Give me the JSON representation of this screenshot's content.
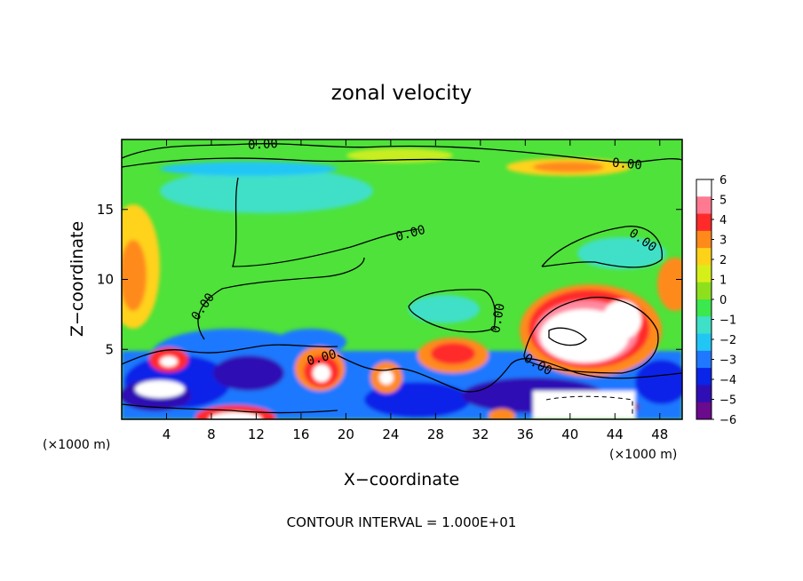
{
  "chart_data": {
    "type": "heatmap",
    "title": "zonal velocity",
    "xlabel": "X−coordinate",
    "ylabel": "Z−coordinate",
    "x_units": "(×1000 m)",
    "z_units": "(×1000 m)",
    "footer": "CONTOUR INTERVAL = 1.000E+01",
    "xlim": [
      0,
      50
    ],
    "zlim": [
      0,
      20
    ],
    "x_ticks": [
      4,
      8,
      12,
      16,
      20,
      24,
      28,
      32,
      36,
      40,
      44,
      48
    ],
    "z_ticks": [
      5,
      10,
      15
    ],
    "colorbar": {
      "ticks": [
        6,
        5,
        4,
        3,
        2,
        1,
        0,
        -1,
        -2,
        -3,
        -4,
        -5,
        -6
      ],
      "range": [
        -6,
        6
      ],
      "colors": [
        "#6a0a8c",
        "#2f0fb5",
        "#0a24e8",
        "#1f78ff",
        "#22c6f5",
        "#3fe0c8",
        "#3be84e",
        "#8ee01d",
        "#d6ef1a",
        "#ffd21a",
        "#ff8a1a",
        "#ff2a2a",
        "#ff7a90",
        "#ffffff"
      ]
    },
    "contour_label": "0.00",
    "contour_label_count": 8
  }
}
